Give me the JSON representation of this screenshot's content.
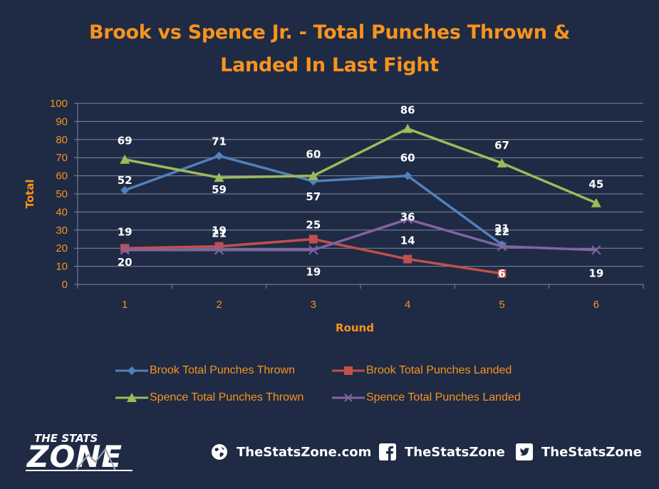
{
  "chart_data": {
    "type": "line",
    "title_line1": "Brook vs Spence Jr. - Total Punches Thrown &",
    "title_line2": "Landed In Last Fight",
    "xlabel": "Round",
    "ylabel": "Total",
    "ylim": [
      0,
      100
    ],
    "ytick_step": 10,
    "grid": true,
    "legend_position": "bottom",
    "categories": [
      "1",
      "2",
      "3",
      "4",
      "5",
      "6"
    ],
    "series": [
      {
        "name": "Brook Total Punches Thrown",
        "color": "#4f81bd",
        "marker": "diamond",
        "values": [
          52,
          71,
          57,
          60,
          22,
          null
        ],
        "labels": [
          "52",
          "71",
          "57",
          "60",
          "22",
          ""
        ]
      },
      {
        "name": "Brook Total Punches Landed",
        "color": "#c0504d",
        "marker": "square",
        "values": [
          20,
          21,
          25,
          14,
          6,
          null
        ],
        "labels": [
          "20",
          "21",
          "25",
          "14",
          "6",
          ""
        ]
      },
      {
        "name": "Spence Total Punches Thrown",
        "color": "#9bbb59",
        "marker": "triangle",
        "values": [
          69,
          59,
          60,
          86,
          67,
          45
        ],
        "labels": [
          "69",
          "59",
          "60",
          "86",
          "67",
          "45"
        ]
      },
      {
        "name": "Spence Total Punches Landed",
        "color": "#8064a2",
        "marker": "x",
        "values": [
          19,
          19,
          19,
          36,
          21,
          19
        ],
        "labels": [
          "19",
          "19",
          "19",
          "36",
          "21",
          "19"
        ]
      }
    ]
  },
  "footer": {
    "brand_top": "THE STATS",
    "brand_main": "ZONE",
    "website": "TheStatsZone.com",
    "facebook": "TheStatsZone",
    "twitter": "TheStatsZone",
    "website_icon": "globe-icon",
    "facebook_icon": "facebook-icon",
    "twitter_icon": "twitter-icon"
  },
  "colors": {
    "background": "#1f2a44",
    "accent": "#f7941d",
    "text": "#ffffff",
    "grid": "#7f8aa0"
  }
}
